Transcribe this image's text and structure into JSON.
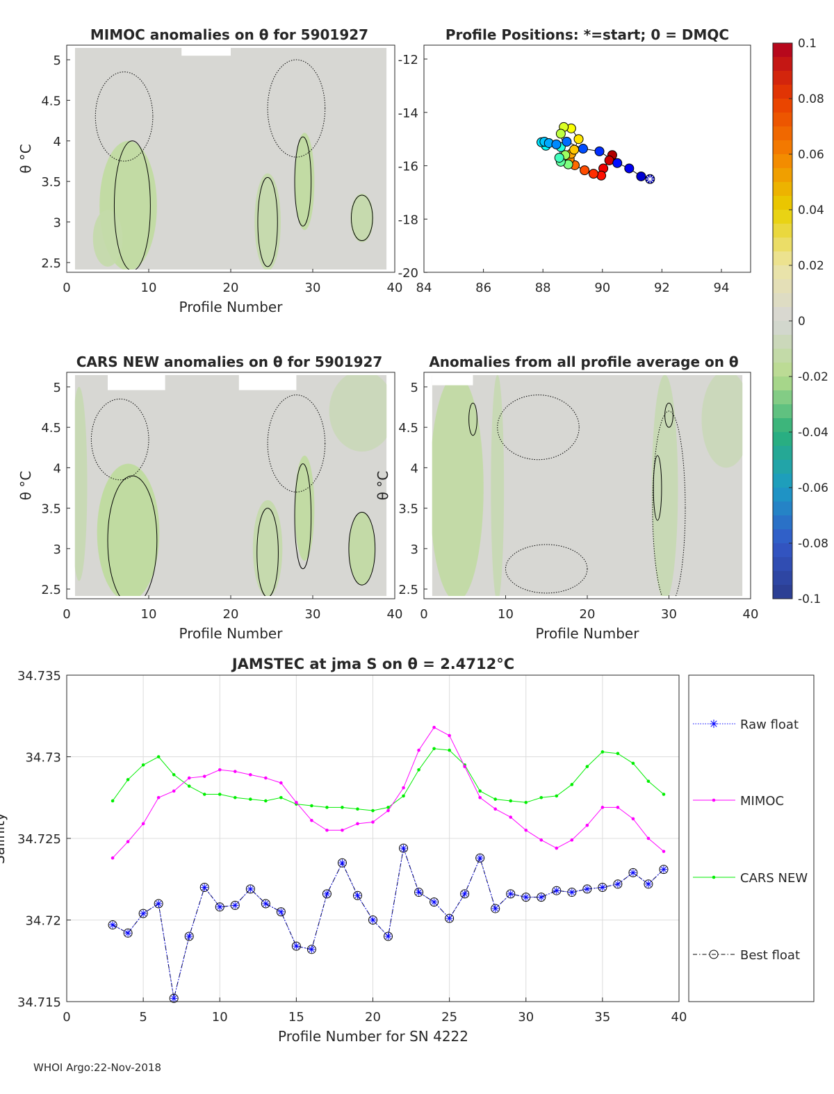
{
  "chart_data": [
    {
      "type": "heatmap",
      "title": "MIMOC anomalies on θ  for 5901927",
      "xlabel": "Profile Number",
      "ylabel": "θ °C",
      "xlim": [
        0,
        40
      ],
      "ylim": [
        2.38,
        5.18
      ],
      "xticks": [
        "0",
        "10",
        "20",
        "30",
        "40"
      ],
      "yticks": [
        "2.5",
        "3",
        "3.5",
        "4",
        "4.5",
        "5"
      ],
      "anomaly_regions": [
        {
          "profile": 7.5,
          "theta": 3.2,
          "profile_radius": 3.5,
          "theta_radius": 0.8,
          "value": -0.015
        },
        {
          "profile": 5,
          "theta": 2.8,
          "profile_radius": 1.8,
          "theta_radius": 0.35,
          "value": -0.012
        },
        {
          "profile": 24.5,
          "theta": 3.0,
          "profile_radius": 1.6,
          "theta_radius": 0.6,
          "value": -0.012
        },
        {
          "profile": 29,
          "theta": 3.5,
          "profile_radius": 1.2,
          "theta_radius": 0.6,
          "value": -0.015
        },
        {
          "profile": 36,
          "theta": 3.05,
          "profile_radius": 1.4,
          "theta_radius": 0.3,
          "value": -0.012
        }
      ],
      "contours": [
        {
          "profile": 8,
          "theta": 3.2,
          "profile_radius": 2.2,
          "theta_radius": 0.8,
          "style": "solid"
        },
        {
          "profile": 24.5,
          "theta": 3.0,
          "profile_radius": 1.2,
          "theta_radius": 0.55,
          "style": "solid"
        },
        {
          "profile": 28.8,
          "theta": 3.5,
          "profile_radius": 1.0,
          "theta_radius": 0.55,
          "style": "solid"
        },
        {
          "profile": 36,
          "theta": 3.05,
          "profile_radius": 1.3,
          "theta_radius": 0.28,
          "style": "solid"
        },
        {
          "profile": 7,
          "theta": 4.3,
          "profile_radius": 3.5,
          "theta_radius": 0.55,
          "style": "dotted"
        },
        {
          "profile": 28,
          "theta": 4.4,
          "profile_radius": 3.5,
          "theta_radius": 0.6,
          "style": "dotted"
        }
      ]
    },
    {
      "type": "scatter",
      "title": "Profile Positions: *=start; 0 = DMQC",
      "xlim": [
        84,
        95
      ],
      "ylim": [
        -20,
        -11.5
      ],
      "xticks": [
        "84",
        "86",
        "88",
        "90",
        "92",
        "94"
      ],
      "yticks": [
        "-12",
        "-14",
        "-16",
        "-18",
        "-20"
      ],
      "points": [
        [
          91.6,
          -16.5
        ],
        [
          91.3,
          -16.4
        ],
        [
          90.9,
          -16.1
        ],
        [
          90.5,
          -15.9
        ],
        [
          89.9,
          -15.46
        ],
        [
          89.35,
          -15.36
        ],
        [
          88.8,
          -15.1
        ],
        [
          88.45,
          -15.2
        ],
        [
          88.2,
          -15.15
        ],
        [
          88.05,
          -15.1
        ],
        [
          87.95,
          -15.12
        ],
        [
          88.1,
          -15.25
        ],
        [
          88.6,
          -15.3
        ],
        [
          88.55,
          -15.7
        ],
        [
          88.6,
          -15.85
        ],
        [
          88.85,
          -15.95
        ],
        [
          88.75,
          -15.6
        ],
        [
          88.6,
          -14.8
        ],
        [
          88.7,
          -14.55
        ],
        [
          88.95,
          -14.6
        ],
        [
          89.2,
          -15.0
        ],
        [
          89.05,
          -15.4
        ],
        [
          88.95,
          -15.55
        ],
        [
          88.9,
          -15.75
        ],
        [
          89.07,
          -15.98
        ],
        [
          89.4,
          -16.17
        ],
        [
          89.7,
          -16.3
        ],
        [
          89.96,
          -16.37
        ],
        [
          90.03,
          -16.1
        ],
        [
          90.23,
          -15.8
        ],
        [
          90.33,
          -15.6
        ]
      ]
    },
    {
      "type": "heatmap",
      "title": "CARS NEW anomalies on θ for 5901927",
      "xlabel": "Profile Number",
      "ylabel": "θ °C",
      "xlim": [
        0,
        40
      ],
      "ylim": [
        2.38,
        5.18
      ],
      "xticks": [
        "0",
        "10",
        "20",
        "30",
        "40"
      ],
      "yticks": [
        "2.5",
        "3",
        "3.5",
        "4",
        "4.5",
        "5"
      ],
      "anomaly_regions": [
        {
          "profile": 7.5,
          "theta": 3.2,
          "profile_radius": 3.8,
          "theta_radius": 0.85,
          "value": -0.016
        },
        {
          "profile": 1.5,
          "theta": 3.8,
          "profile_radius": 1.0,
          "theta_radius": 1.2,
          "value": -0.01
        },
        {
          "profile": 24.5,
          "theta": 3.0,
          "profile_radius": 1.8,
          "theta_radius": 0.6,
          "value": -0.012
        },
        {
          "profile": 29,
          "theta": 3.5,
          "profile_radius": 1.2,
          "theta_radius": 0.65,
          "value": -0.015
        },
        {
          "profile": 36,
          "theta": 3.0,
          "profile_radius": 1.6,
          "theta_radius": 0.45,
          "value": -0.014
        },
        {
          "profile": 36,
          "theta": 4.7,
          "profile_radius": 4,
          "theta_radius": 0.5,
          "value": -0.008
        }
      ],
      "contours": [
        {
          "profile": 8,
          "theta": 3.1,
          "profile_radius": 3,
          "theta_radius": 0.8,
          "style": "solid"
        },
        {
          "profile": 24.5,
          "theta": 2.95,
          "profile_radius": 1.3,
          "theta_radius": 0.55,
          "style": "solid"
        },
        {
          "profile": 28.8,
          "theta": 3.4,
          "profile_radius": 1.0,
          "theta_radius": 0.65,
          "style": "solid"
        },
        {
          "profile": 36,
          "theta": 3.0,
          "profile_radius": 1.6,
          "theta_radius": 0.45,
          "style": "solid"
        },
        {
          "profile": 6.5,
          "theta": 4.35,
          "profile_radius": 3.5,
          "theta_radius": 0.5,
          "style": "dotted"
        },
        {
          "profile": 28,
          "theta": 4.3,
          "profile_radius": 3.5,
          "theta_radius": 0.6,
          "style": "dotted"
        }
      ]
    },
    {
      "type": "heatmap",
      "title": "Anomalies from all profile average on θ",
      "xlabel": "Profile Number",
      "ylabel": "θ °C",
      "xlim": [
        0,
        40
      ],
      "ylim": [
        2.38,
        5.18
      ],
      "xticks": [
        "0",
        "10",
        "20",
        "30",
        "40"
      ],
      "yticks": [
        "2.5",
        "3",
        "3.5",
        "4",
        "4.5",
        "5"
      ],
      "anomaly_regions": [
        {
          "profile": 4,
          "theta": 3.75,
          "profile_radius": 3.3,
          "theta_radius": 1.4,
          "value": -0.014
        },
        {
          "profile": 9,
          "theta": 3.75,
          "profile_radius": 0.8,
          "theta_radius": 1.4,
          "value": -0.01
        },
        {
          "profile": 29.5,
          "theta": 3.75,
          "profile_radius": 1.6,
          "theta_radius": 1.4,
          "value": -0.01
        },
        {
          "profile": 37,
          "theta": 4.6,
          "profile_radius": 3,
          "theta_radius": 0.6,
          "value": -0.008
        }
      ],
      "contours": [
        {
          "profile": 28.6,
          "theta": 3.75,
          "profile_radius": 0.5,
          "theta_radius": 0.4,
          "style": "solid"
        },
        {
          "profile": 6,
          "theta": 4.6,
          "profile_radius": 0.5,
          "theta_radius": 0.2,
          "style": "solid"
        },
        {
          "profile": 30,
          "theta": 4.65,
          "profile_radius": 0.5,
          "theta_radius": 0.15,
          "style": "solid"
        },
        {
          "profile": 15,
          "theta": 2.75,
          "profile_radius": 5,
          "theta_radius": 0.3,
          "style": "dotted"
        },
        {
          "profile": 14,
          "theta": 4.5,
          "profile_radius": 5,
          "theta_radius": 0.4,
          "style": "dotted"
        },
        {
          "profile": 30,
          "theta": 3.5,
          "profile_radius": 2,
          "theta_radius": 1.2,
          "style": "dotted"
        }
      ]
    },
    {
      "type": "line",
      "title": "JAMSTEC at jma S on θ = 2.4712°C",
      "xlabel": "Profile Number for SN 4222",
      "ylabel": "Salinity",
      "xlim": [
        0,
        40
      ],
      "ylim": [
        34.715,
        34.735
      ],
      "xticks": [
        "0",
        "5",
        "10",
        "15",
        "20",
        "25",
        "30",
        "35",
        "40"
      ],
      "yticks": [
        "34.715",
        "34.72",
        "34.725",
        "34.73",
        "34.735"
      ],
      "grid": true,
      "legend_position": "outside-right",
      "x": [
        3,
        4,
        5,
        6,
        7,
        8,
        9,
        10,
        11,
        12,
        13,
        14,
        15,
        16,
        17,
        18,
        19,
        20,
        21,
        22,
        23,
        24,
        25,
        26,
        27,
        28,
        29,
        30,
        31,
        32,
        33,
        34,
        35,
        36,
        37,
        38,
        39
      ],
      "series": [
        {
          "name": "Raw float",
          "color": "#0000ff",
          "values": [
            34.7197,
            34.7192,
            34.7204,
            34.721,
            34.7152,
            34.719,
            34.722,
            34.7208,
            34.7209,
            34.7219,
            34.721,
            34.7205,
            34.7184,
            34.7182,
            34.7216,
            34.7235,
            34.7215,
            34.72,
            34.719,
            34.7244,
            34.7217,
            34.7211,
            34.7201,
            34.7216,
            34.7238,
            34.7207,
            34.7216,
            34.7214,
            34.7214,
            34.7218,
            34.7217,
            34.7219,
            34.722,
            34.7222,
            34.7229,
            34.7222,
            34.7231
          ]
        },
        {
          "name": "MIMOC",
          "color": "#ff00ff",
          "values": [
            34.7238,
            34.7248,
            34.7259,
            34.7275,
            34.7279,
            34.7287,
            34.7288,
            34.7292,
            34.7291,
            34.7289,
            34.7287,
            34.7284,
            34.7272,
            34.7261,
            34.7255,
            34.7255,
            34.7259,
            34.726,
            34.7267,
            34.7281,
            34.7304,
            34.7318,
            34.7313,
            34.7294,
            34.7275,
            34.7268,
            34.7263,
            34.7255,
            34.7249,
            34.7244,
            34.7249,
            34.7258,
            34.7269,
            34.7269,
            34.7262,
            34.725,
            34.7242
          ]
        },
        {
          "name": "CARS NEW",
          "color": "#00ee00",
          "values": [
            34.7273,
            34.7286,
            34.7295,
            34.73,
            34.7289,
            34.7282,
            34.7277,
            34.7277,
            34.7275,
            34.7274,
            34.7273,
            34.7275,
            34.7271,
            34.727,
            34.7269,
            34.7269,
            34.7268,
            34.7267,
            34.7269,
            34.7276,
            34.7292,
            34.7305,
            34.7304,
            34.7295,
            34.7279,
            34.7274,
            34.7273,
            34.7272,
            34.7275,
            34.7276,
            34.7283,
            34.7294,
            34.7303,
            34.7302,
            34.7296,
            34.7285,
            34.7277
          ]
        },
        {
          "name": "Best float",
          "color": "#000000",
          "values": [
            34.7197,
            34.7192,
            34.7204,
            34.721,
            34.7152,
            34.719,
            34.722,
            34.7208,
            34.7209,
            34.7219,
            34.721,
            34.7205,
            34.7184,
            34.7182,
            34.7216,
            34.7235,
            34.7215,
            34.72,
            34.719,
            34.7244,
            34.7217,
            34.7211,
            34.7201,
            34.7216,
            34.7238,
            34.7207,
            34.7216,
            34.7214,
            34.7214,
            34.7218,
            34.7217,
            34.7219,
            34.722,
            34.7222,
            34.7229,
            34.7222,
            34.7231
          ]
        }
      ]
    }
  ],
  "colorbar": {
    "range": [
      -0.1,
      0.1
    ],
    "ticks": [
      "0.1",
      "0.08",
      "0.06",
      "0.04",
      "0.02",
      "0",
      "-0.02",
      "-0.04",
      "-0.06",
      "-0.08",
      "-0.1"
    ],
    "stops": [
      {
        "value": -0.1,
        "color": "#2b3b8c"
      },
      {
        "value": -0.08,
        "color": "#3358c8"
      },
      {
        "value": -0.06,
        "color": "#1c9cc4"
      },
      {
        "value": -0.04,
        "color": "#2bb078"
      },
      {
        "value": -0.02,
        "color": "#b8dc8c"
      },
      {
        "value": 0,
        "color": "#d6d6d6"
      },
      {
        "value": 0.02,
        "color": "#ece5a4"
      },
      {
        "value": 0.04,
        "color": "#e8d000"
      },
      {
        "value": 0.06,
        "color": "#f58200"
      },
      {
        "value": 0.08,
        "color": "#e83c00"
      },
      {
        "value": 0.1,
        "color": "#b00020"
      }
    ]
  },
  "footer": "WHOI Argo:22-Nov-2018"
}
